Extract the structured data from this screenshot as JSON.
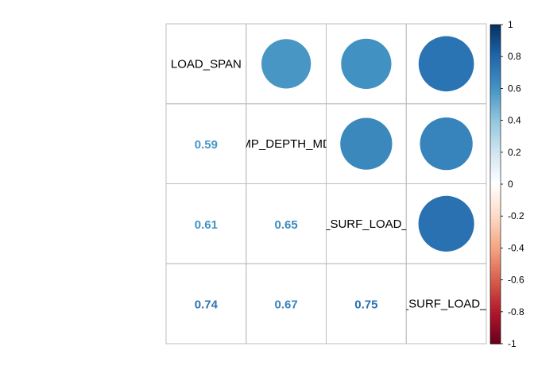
{
  "chart_data": {
    "type": "heatmap",
    "title": "",
    "variables": [
      "LOAD_SPAN",
      "MP_DEPTH_MD",
      "K_SURF_LOAD_C",
      "I_SURF_LOAD_F"
    ],
    "matrix": [
      [
        1.0,
        0.59,
        0.61,
        0.74
      ],
      [
        0.59,
        1.0,
        0.65,
        0.67
      ],
      [
        0.61,
        0.65,
        1.0,
        0.75
      ],
      [
        0.74,
        0.67,
        0.75,
        1.0
      ]
    ],
    "upper_triangle": "circle",
    "lower_triangle": "number",
    "diagonal": "variable-name",
    "colorbar": {
      "range": [
        -1,
        1
      ],
      "ticks": [
        1,
        0.8,
        0.6,
        0.4,
        0.2,
        0,
        -0.2,
        -0.4,
        -0.6,
        -0.8,
        -1
      ],
      "tick_labels": [
        "1",
        "0.8",
        "0.6",
        "0.4",
        "0.2",
        "0",
        "-0.2",
        "-0.4",
        "-0.6",
        "-0.8",
        "-1"
      ],
      "placement": "right"
    },
    "palette": [
      "#67001F",
      "#B2182B",
      "#D6604D",
      "#F4A582",
      "#FDDBC7",
      "#FFFFFF",
      "#D1E5F0",
      "#92C5DE",
      "#4393C3",
      "#2166AC",
      "#053061"
    ],
    "grid_color": "#BEBEBE"
  }
}
